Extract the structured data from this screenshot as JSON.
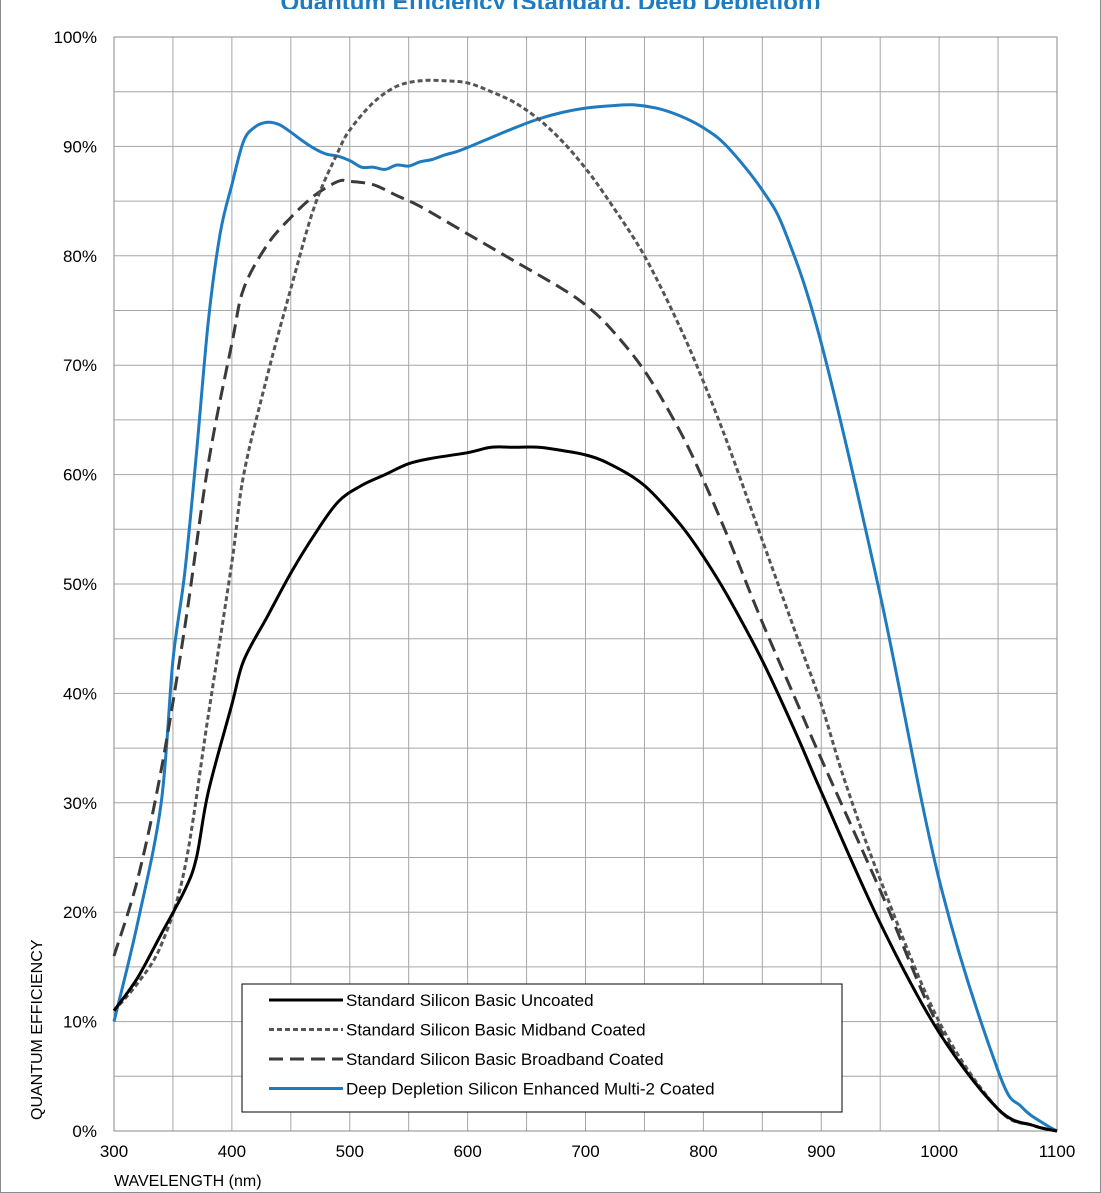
{
  "chart_title": "Quantum Efficiency (Standard, Deep Depletion)",
  "chart_data": {
    "type": "line",
    "title": "",
    "xlabel": "WAVELENGTH (nm)",
    "ylabel": "QUANTUM EFFICIENCY",
    "xlim": [
      300,
      1100
    ],
    "ylim": [
      0,
      100
    ],
    "x_ticks": [
      300,
      400,
      500,
      600,
      700,
      800,
      900,
      1000,
      1100
    ],
    "y_ticks": [
      0,
      10,
      20,
      30,
      40,
      50,
      60,
      70,
      80,
      90,
      100
    ],
    "x_tick_labels": [
      "300",
      "400",
      "500",
      "600",
      "700",
      "800",
      "900",
      "1000",
      "1100"
    ],
    "y_tick_labels": [
      "0%",
      "10%",
      "20%",
      "30%",
      "40%",
      "50%",
      "60%",
      "70%",
      "80%",
      "90%",
      "100%"
    ],
    "grid": true,
    "legend_position": "bottom-left",
    "series": [
      {
        "name": "Standard Silicon Basic Uncoated",
        "color": "#000000",
        "dash": "solid",
        "x": [
          300,
          320,
          340,
          360,
          370,
          380,
          400,
          410,
          430,
          450,
          470,
          490,
          510,
          530,
          550,
          570,
          600,
          620,
          640,
          660,
          680,
          700,
          720,
          750,
          780,
          800,
          820,
          850,
          880,
          900,
          950,
          1000,
          1050,
          1080,
          1100
        ],
        "y": [
          11,
          14,
          18,
          22,
          25,
          31,
          39,
          43,
          47,
          51,
          54.5,
          57.5,
          59,
          60,
          61,
          61.5,
          62,
          62.5,
          62.5,
          62.5,
          62.2,
          61.8,
          61,
          59,
          55.5,
          52.5,
          49,
          43,
          36,
          31,
          19,
          9,
          2,
          0.5,
          0
        ]
      },
      {
        "name": "Standard Silicon Basic Midband Coated",
        "color": "#555555",
        "dash": "dotted",
        "x": [
          300,
          320,
          340,
          360,
          380,
          400,
          410,
          430,
          450,
          470,
          490,
          500,
          520,
          540,
          560,
          580,
          600,
          620,
          640,
          660,
          680,
          700,
          720,
          750,
          780,
          800,
          820,
          850,
          880,
          900,
          920,
          950,
          1000,
          1050,
          1080,
          1100
        ],
        "y": [
          11,
          13.5,
          17,
          24,
          38,
          52,
          60,
          69,
          77,
          84.5,
          89.5,
          91.5,
          94,
          95.5,
          96,
          96,
          95.8,
          95,
          94,
          92.5,
          90.5,
          88,
          85,
          80,
          73.5,
          68.5,
          63,
          54,
          45,
          39,
          32,
          23,
          10,
          2,
          0.5,
          0
        ]
      },
      {
        "name": "Standard Silicon Basic Broadband Coated",
        "color": "#3a3a3a",
        "dash": "dashed",
        "x": [
          300,
          320,
          340,
          360,
          380,
          400,
          410,
          430,
          450,
          470,
          490,
          500,
          520,
          540,
          560,
          600,
          640,
          680,
          700,
          720,
          750,
          780,
          800,
          820,
          850,
          880,
          900,
          950,
          1000,
          1050,
          1080,
          1100
        ],
        "y": [
          16,
          23,
          33,
          46,
          61,
          72,
          77,
          81,
          83.5,
          85.5,
          86.8,
          86.8,
          86.5,
          85.5,
          84.5,
          82,
          79.5,
          77,
          75.5,
          73.5,
          69.5,
          64,
          59.5,
          54.5,
          46.5,
          39,
          34,
          22,
          9.5,
          2,
          0.5,
          0
        ]
      },
      {
        "name": "Deep Depletion Silicon Enhanced Multi-2 Coated",
        "color": "#1f7bc0",
        "dash": "solid",
        "x": [
          300,
          320,
          340,
          350,
          360,
          370,
          380,
          390,
          400,
          410,
          420,
          430,
          440,
          450,
          460,
          470,
          480,
          490,
          500,
          510,
          520,
          530,
          540,
          550,
          560,
          570,
          580,
          590,
          600,
          620,
          640,
          660,
          680,
          700,
          720,
          740,
          760,
          780,
          800,
          820,
          850,
          870,
          900,
          950,
          1000,
          1050,
          1070,
          1090,
          1100
        ],
        "y": [
          10,
          19,
          30,
          43,
          51,
          62,
          74,
          82,
          86.5,
          90.5,
          91.8,
          92.2,
          92,
          91.3,
          90.5,
          89.8,
          89.3,
          89.1,
          88.7,
          88.1,
          88.1,
          87.9,
          88.3,
          88.2,
          88.6,
          88.8,
          89.2,
          89.5,
          89.9,
          90.8,
          91.7,
          92.5,
          93.1,
          93.5,
          93.7,
          93.8,
          93.5,
          92.8,
          91.7,
          90,
          86,
          82,
          72,
          49,
          23,
          5.5,
          2.2,
          0.6,
          0
        ]
      }
    ]
  }
}
